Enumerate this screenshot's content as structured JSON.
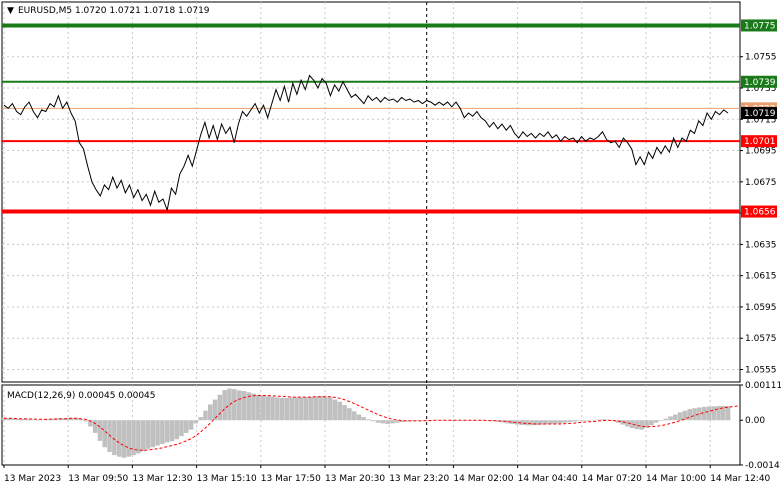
{
  "header": {
    "symbol_line": "EURUSD,M5  1.0720 1.0721 1.0718 1.0719"
  },
  "chart_data": [
    {
      "type": "line",
      "name": "price",
      "ylim": [
        1.0547,
        1.079
      ],
      "price_ticks": [
        "1.0755",
        "1.0735",
        "1.0715",
        "1.0695",
        "1.0675",
        "1.0655",
        "1.0635",
        "1.0615",
        "1.0595",
        "1.0575",
        "1.0555"
      ],
      "price_tick_values": [
        1.0755,
        1.0735,
        1.0715,
        1.0695,
        1.0675,
        1.0655,
        1.0635,
        1.0615,
        1.0595,
        1.0575,
        1.0555
      ],
      "x_ticks": [
        "13 Mar 2023",
        "13 Mar 09:50",
        "13 Mar 12:30",
        "13 Mar 15:10",
        "13 Mar 17:50",
        "13 Mar 20:30",
        "13 Mar 23:20",
        "14 Mar 02:00",
        "14 Mar 04:40",
        "14 Mar 07:20",
        "14 Mar 10:00",
        "14 Mar 12:40"
      ],
      "levels": [
        {
          "label": "1.0775",
          "value": 1.0775,
          "color": "#1a7a1a",
          "style": "thick"
        },
        {
          "label": "1.0739",
          "value": 1.0739,
          "color": "#1a7a1a",
          "style": "normal"
        },
        {
          "label": "1.0722",
          "value": 1.0722,
          "color": "#e8a070",
          "style": "thin"
        },
        {
          "label": "1.0701",
          "value": 1.0701,
          "color": "#ff0000",
          "style": "normal"
        },
        {
          "label": "1.0656",
          "value": 1.0656,
          "color": "#ff0000",
          "style": "thick"
        }
      ],
      "current_price": {
        "label": "1.0719",
        "value": 1.0719
      },
      "ask_price": {
        "label": "1.0722",
        "value": 1.0722
      },
      "separator_index": 101,
      "values": [
        1.0724,
        1.0722,
        1.0725,
        1.072,
        1.0718,
        1.0723,
        1.0726,
        1.072,
        1.0716,
        1.0721,
        1.072,
        1.0725,
        1.0723,
        1.073,
        1.0722,
        1.0726,
        1.0719,
        1.0714,
        1.07,
        1.0696,
        1.0685,
        1.0675,
        1.067,
        1.0666,
        1.0673,
        1.067,
        1.0678,
        1.0671,
        1.0676,
        1.0668,
        1.0673,
        1.0665,
        1.067,
        1.0663,
        1.0667,
        1.066,
        1.0669,
        1.0662,
        1.0664,
        1.0657,
        1.0671,
        1.0667,
        1.068,
        1.0685,
        1.0692,
        1.0685,
        1.0695,
        1.0705,
        1.0713,
        1.0703,
        1.0711,
        1.0702,
        1.0712,
        1.0706,
        1.071,
        1.07,
        1.0712,
        1.072,
        1.0717,
        1.0721,
        1.0725,
        1.0719,
        1.0724,
        1.0716,
        1.0725,
        1.0734,
        1.0727,
        1.0736,
        1.0726,
        1.0738,
        1.0731,
        1.074,
        1.0734,
        1.0743,
        1.074,
        1.0735,
        1.0741,
        1.0738,
        1.073,
        1.0737,
        1.0733,
        1.0739,
        1.0734,
        1.0729,
        1.0731,
        1.0728,
        1.0725,
        1.073,
        1.0727,
        1.0729,
        1.0726,
        1.0729,
        1.0727,
        1.0728,
        1.0726,
        1.0729,
        1.0727,
        1.0728,
        1.0726,
        1.0727,
        1.0725,
        1.0727,
        1.0726,
        1.0724,
        1.0726,
        1.0724,
        1.0726,
        1.0723,
        1.0726,
        1.0722,
        1.0716,
        1.0719,
        1.0717,
        1.072,
        1.0716,
        1.0714,
        1.071,
        1.0713,
        1.0709,
        1.0712,
        1.0708,
        1.0711,
        1.0706,
        1.0703,
        1.0707,
        1.0704,
        1.0706,
        1.0703,
        1.0706,
        1.0704,
        1.0707,
        1.0703,
        1.0705,
        1.0701,
        1.0704,
        1.0702,
        1.0703,
        1.07,
        1.0704,
        1.0701,
        1.0703,
        1.0702,
        1.0704,
        1.0707,
        1.0702,
        1.07,
        1.0701,
        1.0697,
        1.0703,
        1.07,
        1.0696,
        1.0686,
        1.0691,
        1.0686,
        1.0694,
        1.069,
        1.0697,
        1.0693,
        1.0698,
        1.0694,
        1.0703,
        1.0697,
        1.0703,
        1.0701,
        1.0708,
        1.0706,
        1.0714,
        1.0711,
        1.0719,
        1.0715,
        1.072,
        1.0718,
        1.0721,
        1.0719
      ],
      "title": "",
      "xlabel": "",
      "ylabel": "",
      "grid": true
    },
    {
      "type": "bar",
      "name": "macd",
      "label": "MACD(12,26,9) 0.00045 0.00045",
      "ylim": [
        -0.00141,
        0.00111
      ],
      "axis_ticks": [
        "0.00111",
        "0.00",
        "-0.00141"
      ],
      "axis_tick_values": [
        0.00111,
        0.0,
        -0.00141
      ],
      "histogram": [
        8e-05,
        7e-05,
        6e-05,
        5e-05,
        4e-05,
        3e-05,
        2e-05,
        1e-05,
        2e-05,
        4e-05,
        5e-05,
        6e-05,
        6e-05,
        7e-05,
        8e-05,
        8e-05,
        4e-05,
        -4e-05,
        -0.0002,
        -0.0004,
        -0.00065,
        -0.00085,
        -0.001,
        -0.0011,
        -0.00115,
        -0.00118,
        -0.00115,
        -0.0011,
        -0.00105,
        -0.00098,
        -0.0009,
        -0.00085,
        -0.0008,
        -0.00075,
        -0.0007,
        -0.00066,
        -0.0006,
        -0.0005,
        -0.0004,
        -0.0003,
        -0.0001,
        0.0001,
        0.0003,
        0.0005,
        0.00065,
        0.0008,
        0.00095,
        0.001,
        0.00098,
        0.00094,
        0.00092,
        0.00088,
        0.00084,
        0.0008,
        0.00078,
        0.00076,
        0.00074,
        0.00072,
        0.0007,
        0.0007,
        0.00071,
        0.00072,
        0.00072,
        0.00073,
        0.00074,
        0.00075,
        0.00076,
        0.00074,
        0.00072,
        0.00065,
        0.00058,
        0.00048,
        0.00038,
        0.00028,
        0.00018,
        0.0001,
        3e-05,
        -3e-05,
        -8e-05,
        -0.0001,
        -0.00012,
        -0.0001,
        -8e-05,
        -6e-05,
        -4e-05,
        -3e-05,
        -2e-05,
        -1e-05,
        0.0,
        1e-05,
        1e-05,
        0.0,
        0.0,
        -1e-05,
        0.0,
        1e-05,
        0.0,
        -1e-05,
        0.0,
        0.0,
        -1e-05,
        -2e-05,
        -3e-05,
        -5e-05,
        -7e-05,
        -0.0001,
        -0.00012,
        -0.00014,
        -0.00015,
        -0.00016,
        -0.00016,
        -0.00015,
        -0.00014,
        -0.00013,
        -0.00012,
        -0.00011,
        -0.0001,
        -8e-05,
        -6e-05,
        -4e-05,
        -2e-05,
        -1e-05,
        0.0,
        1e-05,
        2e-05,
        3e-05,
        1e-05,
        -3e-05,
        -8e-05,
        -0.00014,
        -0.0002,
        -0.00025,
        -0.00028,
        -0.0003,
        -0.00024,
        -0.00016,
        -8e-05,
        -2e-05,
        5e-05,
        0.00012,
        0.00018,
        0.00025,
        0.0003,
        0.00035,
        0.00038,
        0.0004,
        0.00042,
        0.00043,
        0.00044,
        0.00045,
        0.00045,
        0.00045
      ],
      "signal": [
        6e-05,
        6e-05,
        6e-05,
        5e-05,
        5e-05,
        4e-05,
        4e-05,
        3e-05,
        3e-05,
        3e-05,
        4e-05,
        4e-05,
        5e-05,
        5e-05,
        6e-05,
        6e-05,
        5e-05,
        3e-05,
        -2e-05,
        -0.0001,
        -0.00021,
        -0.00034,
        -0.00047,
        -0.0006,
        -0.00071,
        -0.0008,
        -0.00087,
        -0.00092,
        -0.00094,
        -0.00095,
        -0.00094,
        -0.00092,
        -0.0009,
        -0.00087,
        -0.00083,
        -0.0008,
        -0.00076,
        -0.00071,
        -0.00065,
        -0.00058,
        -0.00049,
        -0.00037,
        -0.00024,
        -9e-05,
        6e-05,
        0.00021,
        0.00036,
        0.00049,
        0.00059,
        0.00066,
        0.00071,
        0.00075,
        0.00077,
        0.00078,
        0.00078,
        0.00078,
        0.00077,
        0.00076,
        0.00075,
        0.00074,
        0.00073,
        0.00073,
        0.00073,
        0.00073,
        0.00073,
        0.00074,
        0.00074,
        0.00074,
        0.00074,
        0.00072,
        0.00069,
        0.00065,
        0.00059,
        0.00053,
        0.00046,
        0.00039,
        0.00032,
        0.00025,
        0.00018,
        0.00012,
        7e-05,
        3e-05,
        1e-05,
        -1e-05,
        -2e-05,
        -2e-05,
        -2e-05,
        -2e-05,
        -1e-05,
        -1e-05,
        0.0,
        0.0,
        0.0,
        0.0,
        0.0,
        0.0,
        0.0,
        0.0,
        0.0,
        0.0,
        0.0,
        -1e-05,
        -1e-05,
        -2e-05,
        -3e-05,
        -4e-05,
        -6e-05,
        -7e-05,
        -9e-05,
        -0.0001,
        -0.00011,
        -0.00012,
        -0.00012,
        -0.00012,
        -0.00012,
        -0.00012,
        -0.00012,
        -0.00011,
        -0.0001,
        -9e-05,
        -7e-05,
        -6e-05,
        -5e-05,
        -4e-05,
        -2e-05,
        -1e-05,
        0.0,
        -1e-05,
        -2e-05,
        -5e-05,
        -8e-05,
        -0.00012,
        -0.00016,
        -0.00019,
        -0.00021,
        -0.0002,
        -0.00019,
        -0.00017,
        -0.00014,
        -0.0001,
        -6e-05,
        -1e-05,
        4e-05,
        0.0001,
        0.00015,
        0.0002,
        0.00024,
        0.00028,
        0.00032,
        0.00036,
        0.00039,
        0.00041,
        0.00043,
        0.00045
      ],
      "title": "",
      "xlabel": "",
      "ylabel": ""
    }
  ],
  "colors": {
    "price_line": "#000000",
    "grid": "#c8c8c8",
    "macd_hist": "#c0c0c0",
    "macd_signal": "#ff0000",
    "axis_text": "#000000",
    "current_price_bg": "#000000",
    "ask_bg": "#e8a070"
  }
}
